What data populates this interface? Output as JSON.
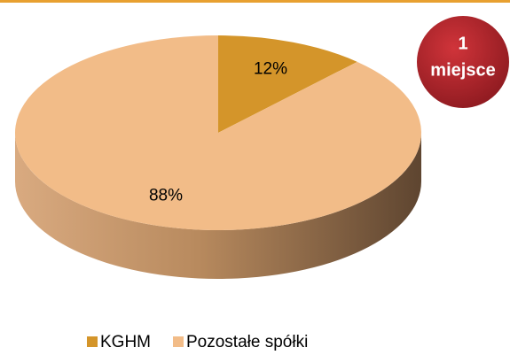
{
  "chart_data": {
    "type": "pie",
    "categories": [
      "KGHM",
      "Pozostałe spółki"
    ],
    "values": [
      12,
      88
    ],
    "value_labels": [
      "12%",
      "88%"
    ],
    "colors": [
      "#d4952a",
      "#f2bc88"
    ]
  },
  "badge": {
    "line1": "1",
    "line2": "miejsce"
  }
}
